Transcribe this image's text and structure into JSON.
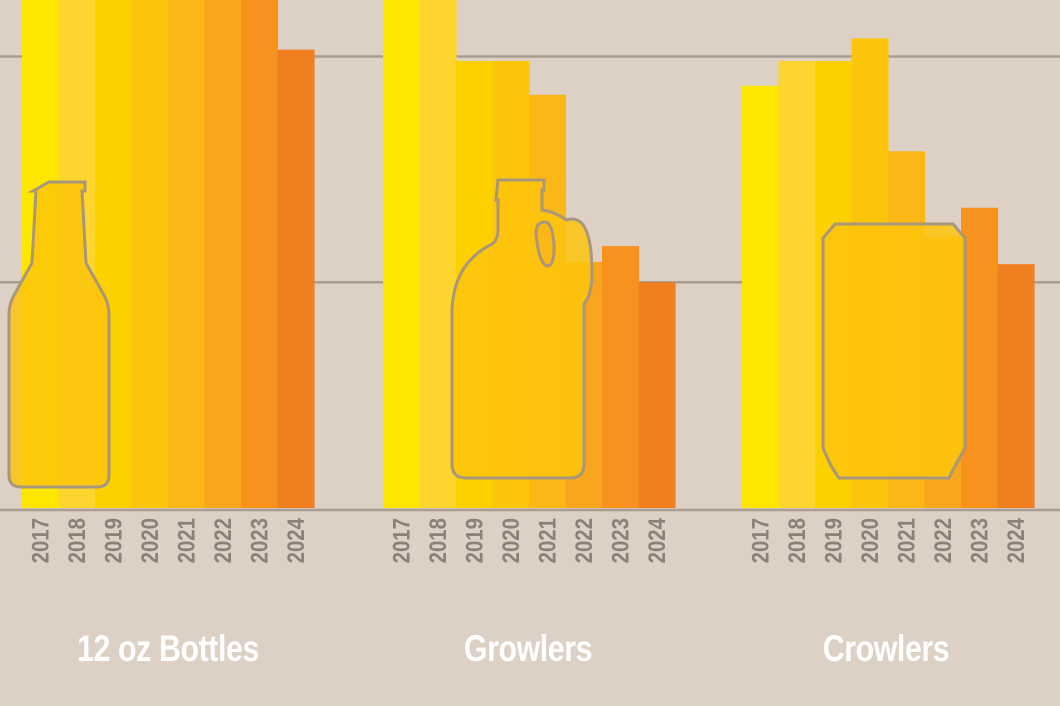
{
  "chart_data": {
    "type": "bar",
    "categories": [
      "2017",
      "2018",
      "2019",
      "2020",
      "2021",
      "2022",
      "2023",
      "2024"
    ],
    "groups": [
      {
        "label": "12 oz Bottles",
        "icon": "bottle-icon",
        "values": [
          2.25,
          2.25,
          2.25,
          2.25,
          2.25,
          2.25,
          2.25,
          2.03
        ]
      },
      {
        "label": "Growlers",
        "icon": "growler-icon",
        "values": [
          2.25,
          2.25,
          1.98,
          1.98,
          1.83,
          1.09,
          1.16,
          1.0
        ]
      },
      {
        "label": "Crowlers",
        "icon": "can-icon",
        "values": [
          1.87,
          1.98,
          1.98,
          2.08,
          1.58,
          1.2,
          1.33,
          1.08
        ]
      }
    ],
    "ylim": [
      0,
      2.25
    ],
    "gridlines": [
      1,
      2
    ],
    "grid": true,
    "y_tick_labels_shown": false,
    "legend": "none",
    "colors": [
      "#fde600",
      "#fdd52e",
      "#fdd100",
      "#fdc40c",
      "#fbb715",
      "#f9a51e",
      "#f7921e",
      "#f07f20"
    ],
    "background": "#ddd1c6",
    "label_color": "#8a8178"
  }
}
